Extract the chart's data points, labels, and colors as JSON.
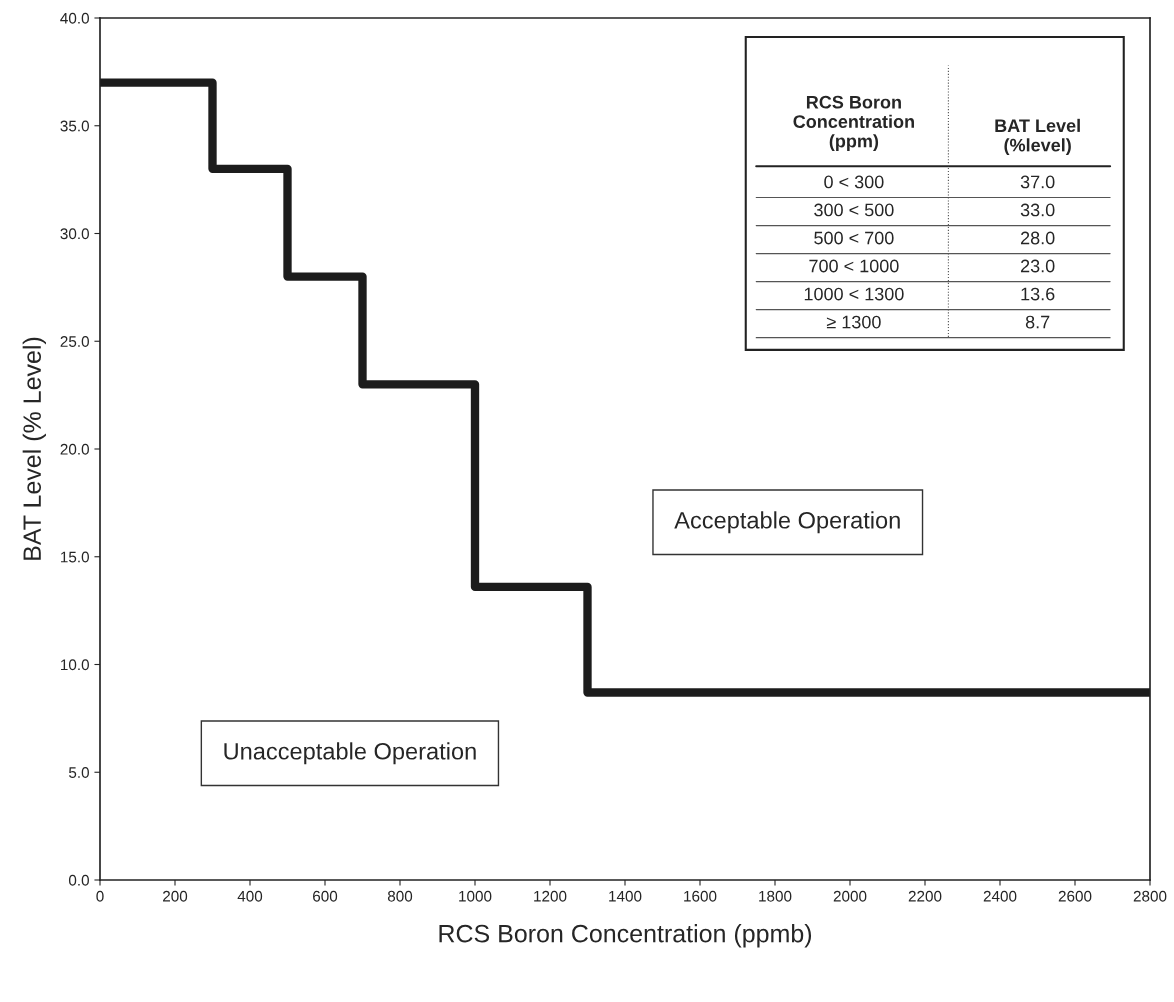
{
  "chart_data": {
    "type": "step",
    "xlabel": "RCS Boron Concentration (ppmb)",
    "ylabel": "BAT Level (% Level)",
    "x": [
      0,
      300,
      500,
      700,
      1000,
      1300,
      2800
    ],
    "series": [
      {
        "color": "#1c1c1c",
        "values": [
          37.0,
          33.0,
          28.0,
          23.0,
          13.6,
          8.7,
          8.7
        ]
      }
    ],
    "value_labels": [
      "37.0",
      "33.0",
      "28.0",
      "23.0",
      "13.6",
      "8.7",
      null
    ],
    "xlim": [
      0,
      2800
    ],
    "xticks": [
      0,
      200,
      400,
      600,
      800,
      1000,
      1200,
      1400,
      1600,
      1800,
      2000,
      2200,
      2400,
      2600,
      2800
    ],
    "ylim": [
      0,
      40
    ],
    "yticks": [
      {
        "value": 0,
        "label": "0.0"
      },
      {
        "value": 5,
        "label": "5.0"
      },
      {
        "value": 10,
        "label": "10.0"
      },
      {
        "value": 15,
        "label": "15.0"
      },
      {
        "value": 20,
        "label": "20.0"
      },
      {
        "value": 25,
        "label": "25.0"
      },
      {
        "value": 30,
        "label": "30.0"
      },
      {
        "value": 35,
        "label": "35.0"
      },
      {
        "value": 40,
        "label": "40.0"
      }
    ],
    "grid": false,
    "legend": false,
    "line_style": "solid",
    "annotations": [
      "Acceptable Operation",
      "Unacceptable Operation",
      "RCS Boron\nConcentration\n(ppm)",
      "BAT Level\n(%level)",
      "0 < 300",
      "300 < 500",
      "500 < 700",
      "700 < 1000",
      "1000 < 1300",
      "≥ 1300"
    ]
  }
}
